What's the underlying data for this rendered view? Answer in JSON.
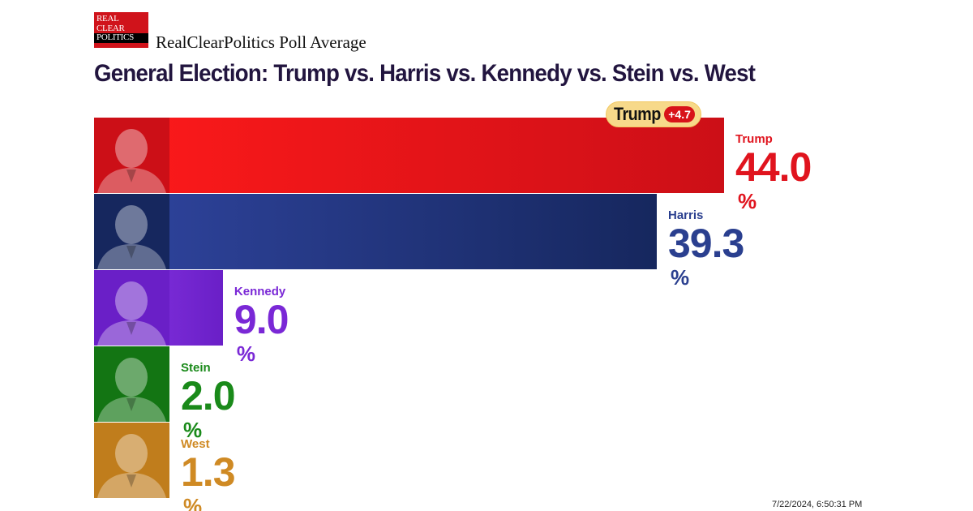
{
  "header": {
    "logo_lines": [
      "REAL",
      "CLEAR",
      "POLITICS"
    ],
    "subtitle": "RealClearPolitics Poll Average",
    "title": "General Election: Trump vs. Harris vs. Kennedy vs. Stein vs. West"
  },
  "lead": {
    "name": "Trump",
    "margin": "+4.7"
  },
  "timestamp": "7/22/2024, 6:50:31 PM",
  "colors": {
    "trump": "#e0141e",
    "harris": "#2a3f8f",
    "kennedy": "#7a28d6",
    "stein": "#1a8a1a",
    "west": "#cf8a24"
  },
  "chart_data": {
    "type": "bar",
    "title": "General Election: Trump vs. Harris vs. Kennedy vs. Stein vs. West",
    "categories": [
      "Trump",
      "Harris",
      "Kennedy",
      "Stein",
      "West"
    ],
    "values": [
      44.0,
      39.3,
      9.0,
      2.0,
      1.3
    ],
    "value_labels": [
      "44.0",
      "39.3",
      "9.0",
      "2.0",
      "1.3"
    ],
    "unit": "%",
    "xlim": [
      0,
      44.0
    ],
    "orientation": "horizontal",
    "grid": false,
    "legend": "none"
  }
}
